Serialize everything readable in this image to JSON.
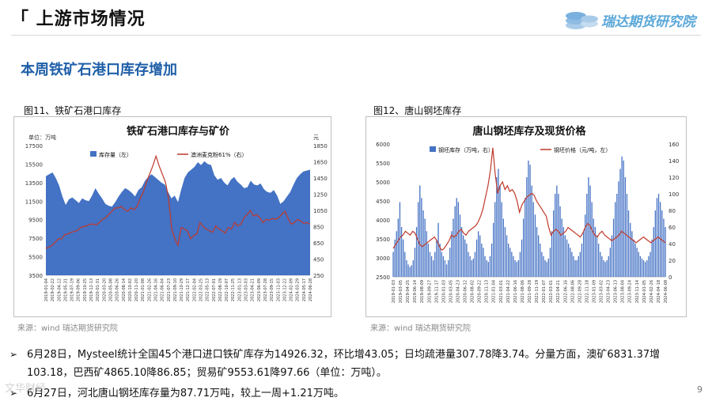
{
  "header": {
    "title": "「 上游市场情况",
    "logo_text": "瑞达期货研究院"
  },
  "section_title": "本周铁矿石港口库存增加",
  "left": {
    "fig_label": "图11、铁矿石港口库存",
    "source": "来源：wind   瑞达期货研究院"
  },
  "right": {
    "fig_label": "图12、唐山钢坯库存",
    "source": "来源：wind   瑞达期货研究院"
  },
  "bullets": [
    {
      "line1": "6月28日，Mysteel统计全国45个港口进口铁矿库存为14926.32，环比增43.05；日均疏港量307.78降3.74。分量方面，澳矿6831.37增",
      "line2": "103.18，巴西矿4865.10降86.85；贸易矿9553.61降97.66（单位：万吨）。"
    },
    {
      "line1": "6月27日，河北唐山钢坯库存量为87.71万吨，较上一周+1.21万吨。"
    }
  ],
  "page_number": "9",
  "watermark": "文华财经",
  "chart_data": [
    {
      "type": "area",
      "title": "铁矿石港口库存与矿价",
      "unit_left": "单位：万吨",
      "unit_right": "元",
      "y_left": {
        "range": [
          3500,
          17500
        ],
        "ticks": [
          "17500",
          "15500",
          "13500",
          "11500",
          "9500",
          "7500",
          "5500",
          "3500"
        ]
      },
      "y_right": {
        "range": [
          250,
          1850
        ],
        "ticks": [
          "1850",
          "1650",
          "1450",
          "1250",
          "1050",
          "850",
          "650",
          "450",
          "250"
        ]
      },
      "x_ticks": [
        "2019-01-04",
        "2019-02-22",
        "2019-04-12",
        "2019-05-31",
        "2019-07-19",
        "2019-09-06",
        "2019-10-25",
        "2019-12-13",
        "2020-01-31",
        "2020-03-20",
        "2020-05-08",
        "2020-06-26",
        "2020-08-14",
        "2020-10-02",
        "2020-11-20",
        "2021-01-08",
        "2021-02-26",
        "2021-04-16",
        "2021-06-04",
        "2021-07-23",
        "2021-09-10",
        "2021-10-29",
        "2021-12-17",
        "2022-02-04",
        "2022-03-25",
        "2022-05-13",
        "2022-07-01",
        "2022-08-19",
        "2022-10-07",
        "2022-11-25",
        "2023-01-13",
        "2023-03-03",
        "2023-04-21",
        "2023-06-09",
        "2023-07-28",
        "2023-09-15",
        "2023-11-03",
        "2023-12-22",
        "2024-02-09",
        "2024-03-29",
        "2024-05-17",
        "2024-06-28"
      ],
      "series": [
        {
          "name": "库存量（左）",
          "type": "area",
          "axis": "left",
          "color": "#4472c4",
          "values": [
            14200,
            14400,
            14600,
            14000,
            13200,
            12000,
            11100,
            11700,
            11900,
            11600,
            11300,
            11800,
            11600,
            11500,
            12100,
            12900,
            12300,
            11800,
            11200,
            11000,
            10900,
            11400,
            12000,
            12500,
            12900,
            12700,
            12400,
            12000,
            12700,
            13000,
            13700,
            14100,
            14400,
            14100,
            13800,
            13500,
            13300,
            12500,
            11800,
            12100,
            11400,
            12800,
            14000,
            14600,
            14900,
            15200,
            15700,
            15400,
            15800,
            15500,
            15400,
            14300,
            13800,
            14000,
            13500,
            13200,
            13800,
            14100,
            13600,
            13300,
            12900,
            13000,
            13700,
            13300,
            13200,
            13400,
            12800,
            12500,
            12400,
            12700,
            12100,
            11200,
            11500,
            12000,
            12500,
            13300,
            14000,
            14400,
            14700,
            14800,
            14900
          ]
        },
        {
          "name": "澳洲麦克粉61%（右）",
          "type": "line",
          "axis": "right",
          "color": "#c0392b",
          "values": [
            580,
            600,
            620,
            660,
            700,
            700,
            750,
            760,
            780,
            790,
            800,
            840,
            850,
            860,
            880,
            880,
            870,
            900,
            940,
            960,
            1000,
            1040,
            1080,
            1080,
            1100,
            1060,
            1040,
            1080,
            1060,
            1100,
            1200,
            1280,
            1400,
            1500,
            1600,
            1720,
            1600,
            1500,
            1400,
            1200,
            820,
            700,
            620,
            840,
            820,
            800,
            700,
            740,
            760,
            900,
            850,
            820,
            800,
            780,
            860,
            820,
            800,
            770,
            840,
            820,
            900,
            860,
            880,
            960,
            1000,
            1050,
            980,
            1000,
            960,
            900,
            940,
            930,
            950,
            940,
            960,
            1000,
            1040,
            950,
            880,
            900,
            940,
            920,
            890,
            900,
            880
          ]
        }
      ]
    },
    {
      "type": "bar",
      "title": "唐山钢坯库存及现货价格",
      "y_left": {
        "range": [
          2500,
          6000
        ],
        "ticks": [
          "6000",
          "5500",
          "5000",
          "4500",
          "4000",
          "3500",
          "3000",
          "2500"
        ]
      },
      "y_right": {
        "range": [
          0,
          160
        ],
        "ticks": [
          "160",
          "140",
          "120",
          "100",
          "80",
          "60",
          "40",
          "20",
          "0"
        ]
      },
      "x_ticks": [
        "2019-01-03",
        "2019-03-05",
        "2019-04-25",
        "2019-06-14",
        "2019-08-09",
        "2019-09-27",
        "2019-11-17",
        "2020-01-03",
        "2020-03-05",
        "2020-04-23",
        "2020-06-12",
        "2020-08-02",
        "2020-09-22",
        "2020-11-13",
        "2021-01-04",
        "2021-03-01",
        "2021-04-22",
        "2021-06-16",
        "2021-08-06",
        "2021-09-28",
        "2021-11-19",
        "2022-01-07",
        "2022-03-01",
        "2022-04-21",
        "2022-06-16",
        "2022-08-06",
        "2022-09-28",
        "2022-11-18",
        "2023-01-09",
        "2023-03-02",
        "2023-04-23",
        "2023-06-13",
        "2023-08-04",
        "2023-09-24",
        "2023-11-14",
        "2024-01-05",
        "2024-02-26",
        "2024-04-18",
        "2024-06-08"
      ],
      "series": [
        {
          "name": "钢坯库存（万吨，右）",
          "type": "bar",
          "axis": "right",
          "color": "#4472c4",
          "values": [
            30,
            45,
            55,
            70,
            90,
            60,
            45,
            30,
            20,
            15,
            12,
            14,
            20,
            35,
            60,
            90,
            110,
            95,
            80,
            70,
            55,
            40,
            30,
            25,
            20,
            30,
            45,
            65,
            40,
            30,
            25,
            20,
            15,
            20,
            35,
            55,
            70,
            85,
            95,
            90,
            75,
            60,
            50,
            45,
            40,
            30,
            25,
            20,
            22,
            30,
            45,
            55,
            50,
            40,
            35,
            25,
            20,
            18,
            25,
            40,
            65,
            90,
            120,
            130,
            110,
            90,
            70,
            60,
            50,
            40,
            35,
            30,
            25,
            20,
            18,
            20,
            30,
            45,
            70,
            95,
            120,
            140,
            135,
            110,
            90,
            75,
            60,
            50,
            40,
            30,
            25,
            20,
            18,
            22,
            35,
            55,
            80,
            100,
            110,
            100,
            85,
            70,
            60,
            50,
            45,
            40,
            35,
            30,
            25,
            20,
            20,
            25,
            30,
            40,
            55,
            75,
            100,
            120,
            110,
            90,
            70,
            60,
            50,
            40,
            30,
            25,
            20,
            18,
            20,
            25,
            35,
            50,
            70,
            90,
            100,
            115,
            130,
            145,
            140,
            120,
            100,
            80,
            65,
            55,
            45,
            40,
            35,
            30,
            25,
            22,
            20,
            18,
            20,
            25,
            30,
            45,
            60,
            80,
            95,
            100,
            90,
            80,
            70,
            60
          ]
        },
        {
          "name": "钢坯价格（元/吨，左）",
          "type": "line",
          "axis": "left",
          "color": "#c0392b",
          "values": [
            3250,
            3350,
            3450,
            3550,
            3600,
            3700,
            3650,
            3600,
            3700,
            3650,
            3500,
            3350,
            3300,
            3350,
            3400,
            3450,
            3500,
            3550,
            3450,
            3300,
            3200,
            3250,
            3350,
            3450,
            3600,
            3550,
            3600,
            3700,
            3750,
            3650,
            3600,
            3700,
            3750,
            3800,
            3850,
            3950,
            4100,
            4300,
            4600,
            4900,
            5300,
            5900,
            5200,
            4700,
            4900,
            5000,
            4800,
            4900,
            4750,
            4800,
            4700,
            4500,
            4200,
            4400,
            4500,
            4600,
            4650,
            4700,
            4650,
            4500,
            4400,
            4300,
            4200,
            4100,
            3800,
            3600,
            3700,
            3750,
            3700,
            3600,
            3650,
            3700,
            3800,
            3750,
            3700,
            3650,
            3600,
            3550,
            3650,
            3800,
            3900,
            3850,
            3700,
            3600,
            3550,
            3650,
            3700,
            3600,
            3550,
            3500,
            3450,
            3500,
            3550,
            3600,
            3700,
            3650,
            3600,
            3550,
            3500,
            3450,
            3400,
            3450,
            3500,
            3550,
            3500,
            3450,
            3400,
            3450,
            3500,
            3550,
            3500,
            3450,
            3400
          ]
        }
      ]
    }
  ]
}
